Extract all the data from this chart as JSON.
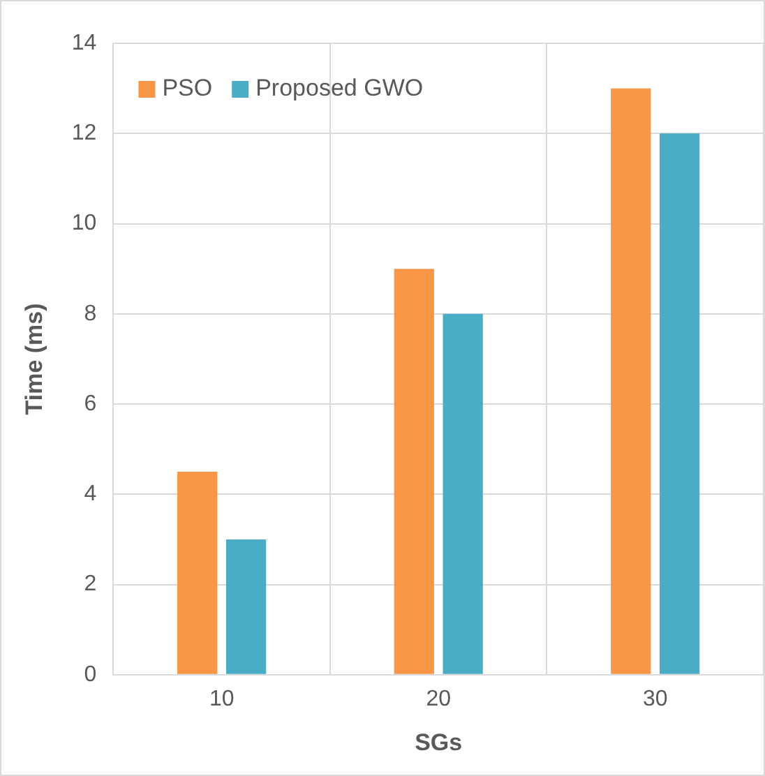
{
  "chart_data": {
    "type": "bar",
    "xlabel": "SGs",
    "ylabel": "Time (ms)",
    "categories": [
      "10",
      "20",
      "30"
    ],
    "series": [
      {
        "name": "PSO",
        "color": "#f79646",
        "values": [
          4.5,
          9,
          13
        ]
      },
      {
        "name": "Proposed GWO",
        "color": "#4bacc6",
        "values": [
          3,
          8,
          12
        ]
      }
    ],
    "ylim": [
      0,
      14
    ],
    "yticks": [
      0,
      2,
      4,
      6,
      8,
      10,
      12,
      14
    ],
    "grid": true,
    "legend": "top left"
  }
}
